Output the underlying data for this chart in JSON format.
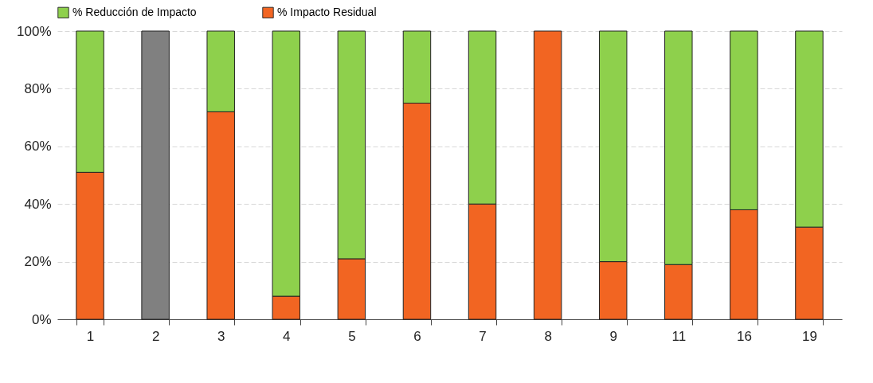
{
  "chart_data": {
    "type": "bar",
    "stacked": true,
    "categories": [
      "1",
      "2",
      "3",
      "4",
      "5",
      "6",
      "7",
      "8",
      "9",
      "11",
      "16",
      "19"
    ],
    "series": [
      {
        "name": "% Impacto Residual",
        "color": "#f26522",
        "values": [
          51,
          null,
          72,
          8,
          21,
          75,
          40,
          100,
          20,
          19,
          38,
          32
        ]
      },
      {
        "name": "% Reducción de Impacto",
        "color": "#8ed04c",
        "values": [
          49,
          null,
          28,
          92,
          79,
          25,
          60,
          null,
          80,
          81,
          62,
          68
        ]
      },
      {
        "color": "#808080",
        "values": [
          null,
          100,
          null,
          null,
          null,
          null,
          null,
          null,
          null,
          null,
          null,
          null
        ]
      }
    ],
    "ylim": [
      0,
      100
    ],
    "yticks": [
      {
        "value": 0,
        "label": "0%"
      },
      {
        "value": 20,
        "label": "20%"
      },
      {
        "value": 40,
        "label": "40%"
      },
      {
        "value": 60,
        "label": "60%"
      },
      {
        "value": 80,
        "label": "80%"
      },
      {
        "value": 100,
        "label": "100%"
      }
    ],
    "grid": "y",
    "legend": "top"
  }
}
